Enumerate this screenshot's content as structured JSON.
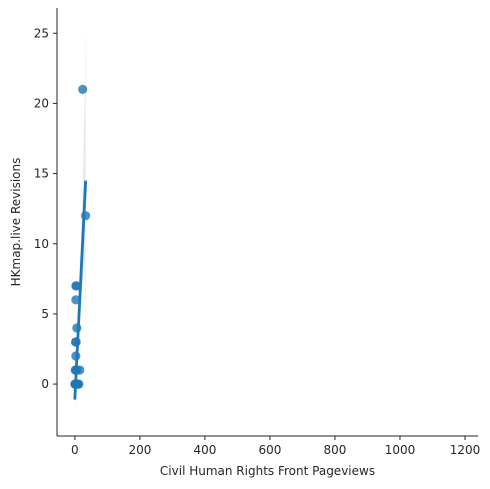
{
  "chart_data": {
    "type": "scatter",
    "title": "",
    "xlabel": "Civil Human Rights Front Pageviews",
    "ylabel": "HKmap.live Revisions",
    "xlim": [
      -55,
      1240
    ],
    "ylim": [
      -3.7,
      26.8
    ],
    "xticks": [
      0,
      200,
      400,
      600,
      800,
      1000,
      1200
    ],
    "yticks": [
      0,
      5,
      10,
      15,
      20,
      25
    ],
    "grid": false,
    "legend": "none",
    "points": [
      {
        "x": 0,
        "y": 0
      },
      {
        "x": 1,
        "y": 0
      },
      {
        "x": 2,
        "y": 0
      },
      {
        "x": 3,
        "y": 0
      },
      {
        "x": 4,
        "y": 0
      },
      {
        "x": 5,
        "y": 0
      },
      {
        "x": 6,
        "y": 0
      },
      {
        "x": 8,
        "y": 0
      },
      {
        "x": 10,
        "y": 0
      },
      {
        "x": 12,
        "y": 0
      },
      {
        "x": 1,
        "y": 1
      },
      {
        "x": 3,
        "y": 1
      },
      {
        "x": 6,
        "y": 1
      },
      {
        "x": 15,
        "y": 1
      },
      {
        "x": 3,
        "y": 2
      },
      {
        "x": 2,
        "y": 3
      },
      {
        "x": 4,
        "y": 3
      },
      {
        "x": 6,
        "y": 4
      },
      {
        "x": 3,
        "y": 6
      },
      {
        "x": 3,
        "y": 7
      },
      {
        "x": 5,
        "y": 7
      },
      {
        "x": 33,
        "y": 12
      },
      {
        "x": 24,
        "y": 21
      }
    ],
    "regression": {
      "x": [
        0,
        33
      ],
      "y": [
        -1.0,
        14.4
      ]
    },
    "confidence_band": {
      "x": [
        0,
        3,
        6,
        10,
        14,
        18,
        22,
        26,
        30,
        33
      ],
      "lower": [
        -1.9,
        0.0,
        1.0,
        2.5,
        4.2,
        5.6,
        6.8,
        8.0,
        8.8,
        3.5
      ],
      "upper": [
        -0.1,
        1.6,
        3.1,
        5.4,
        7.6,
        9.9,
        12.5,
        16.0,
        20.5,
        25.5
      ]
    },
    "colors": {
      "points": "#1f77b4",
      "line": "#1f77b4",
      "band": "#1f77b4",
      "axis": "#262626"
    }
  }
}
